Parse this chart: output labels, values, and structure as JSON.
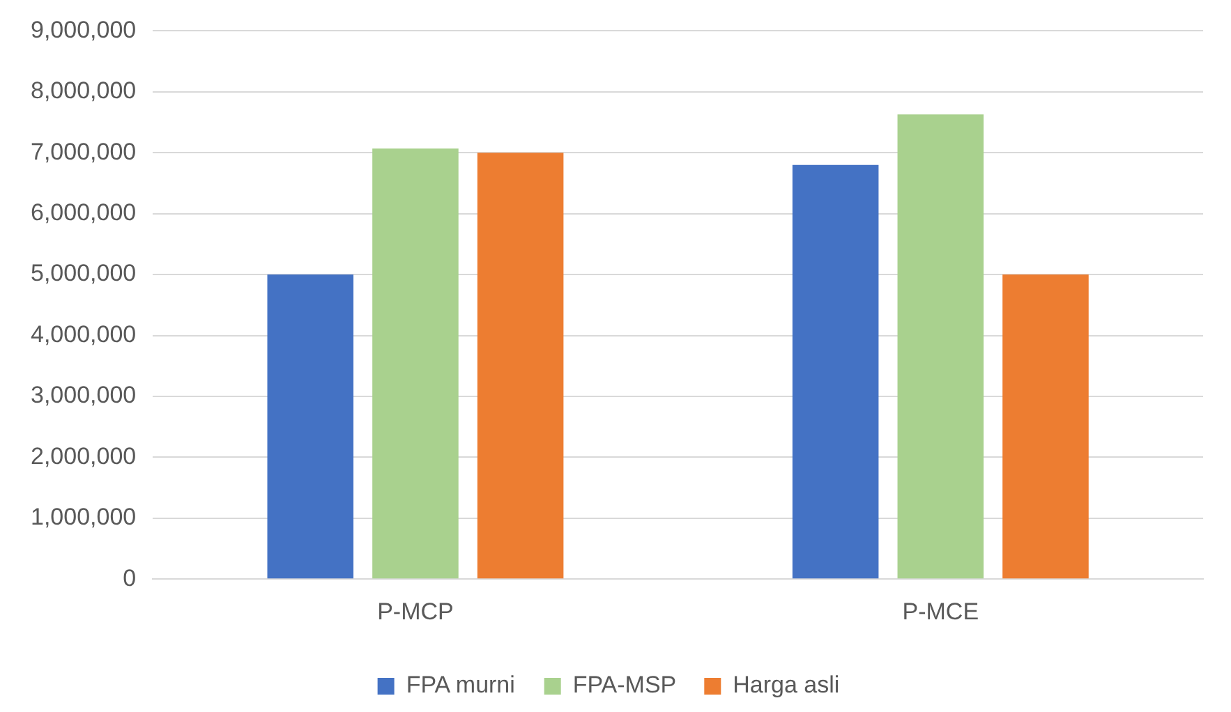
{
  "chart_data": {
    "type": "bar",
    "categories": [
      "P-MCP",
      "P-MCE"
    ],
    "series": [
      {
        "name": "FPA murni",
        "color": "#4472c4",
        "values": [
          5000000,
          6800000
        ]
      },
      {
        "name": "FPA-MSP",
        "color": "#a9d18e",
        "values": [
          7070000,
          7630000
        ]
      },
      {
        "name": "Harga asli",
        "color": "#ed7d31",
        "values": [
          7000000,
          5000000
        ]
      }
    ],
    "ylim": [
      0,
      9000000
    ],
    "yticks": [
      {
        "value": 0,
        "label": "0"
      },
      {
        "value": 1000000,
        "label": "1,000,000"
      },
      {
        "value": 2000000,
        "label": "2,000,000"
      },
      {
        "value": 3000000,
        "label": "3,000,000"
      },
      {
        "value": 4000000,
        "label": "4,000,000"
      },
      {
        "value": 5000000,
        "label": "5,000,000"
      },
      {
        "value": 6000000,
        "label": "6,000,000"
      },
      {
        "value": 7000000,
        "label": "7,000,000"
      },
      {
        "value": 8000000,
        "label": "8,000,000"
      },
      {
        "value": 9000000,
        "label": "9,000,000"
      }
    ],
    "grid": "y",
    "legend": "bottom"
  }
}
